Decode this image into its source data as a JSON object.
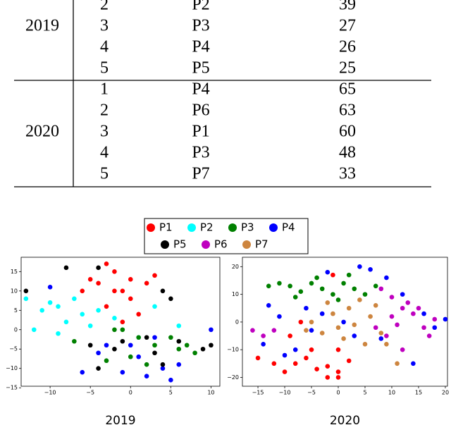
{
  "table": {
    "groups": [
      {
        "year": "2019",
        "rows": [
          [
            "2",
            "P2",
            "39"
          ],
          [
            "3",
            "P3",
            "27"
          ],
          [
            "4",
            "P4",
            "26"
          ],
          [
            "5",
            "P5",
            "25"
          ]
        ]
      },
      {
        "year": "2020",
        "rows": [
          [
            "1",
            "P4",
            "65"
          ],
          [
            "2",
            "P6",
            "63"
          ],
          [
            "3",
            "P1",
            "60"
          ],
          [
            "4",
            "P3",
            "48"
          ],
          [
            "5",
            "P7",
            "33"
          ]
        ]
      }
    ]
  },
  "legend": [
    {
      "name": "P1",
      "color": "#ff0000"
    },
    {
      "name": "P2",
      "color": "#00ffff"
    },
    {
      "name": "P3",
      "color": "#008000"
    },
    {
      "name": "P4",
      "color": "#0000ff"
    },
    {
      "name": "P5",
      "color": "#000000"
    },
    {
      "name": "P6",
      "color": "#bf00bf"
    },
    {
      "name": "P7",
      "color": "#cd853f"
    }
  ],
  "chart_data": [
    {
      "type": "scatter",
      "title": "2019",
      "xlim": [
        -13.6,
        11.1
      ],
      "ylim": [
        -14.6,
        18.7
      ],
      "xticks": [
        {
          "value": -10,
          "label": "−10"
        },
        {
          "value": -5,
          "label": "−5"
        },
        0,
        5,
        10
      ],
      "yticks": [
        {
          "value": -15,
          "label": "−15"
        },
        {
          "value": -10,
          "label": "−10"
        },
        {
          "value": -5,
          "label": "−5"
        },
        0,
        5,
        10,
        15
      ],
      "series": [
        {
          "x": [
            -3,
            -2,
            -4,
            -1,
            0,
            -3,
            1,
            -5,
            -2,
            3,
            -1,
            2,
            -6,
            0
          ],
          "values": [
            17,
            15,
            12,
            10,
            8,
            6,
            4,
            13,
            10,
            14,
            2,
            12,
            10,
            13
          ]
        },
        {
          "x": [
            -13,
            -11,
            -9,
            -12,
            -8,
            -6,
            -10,
            -7,
            -4,
            -2,
            1,
            6,
            3,
            -9,
            -5
          ],
          "values": [
            8,
            5,
            6,
            0,
            2,
            4,
            7,
            8,
            5,
            3,
            -2,
            1,
            6,
            -1,
            1
          ]
        },
        {
          "x": [
            -1,
            1,
            -7,
            3,
            6,
            8,
            0,
            5,
            -3,
            2,
            7,
            -2
          ],
          "values": [
            0,
            -2,
            -3,
            -4,
            -5,
            -6,
            -7,
            -2,
            -8,
            -9,
            -4,
            0
          ]
        },
        {
          "x": [
            -10,
            -6,
            -3,
            0,
            2,
            4,
            -1,
            1,
            3,
            6,
            10,
            5,
            -4
          ],
          "values": [
            11,
            -11,
            -4,
            -4,
            -12,
            -10,
            -11,
            -7,
            -2,
            -9,
            0,
            -13,
            -6
          ]
        },
        {
          "x": [
            -13,
            -8,
            -4,
            -5,
            -2,
            3,
            5,
            4,
            6,
            9,
            -1,
            2,
            4,
            -4,
            10
          ],
          "values": [
            10,
            16,
            16,
            -4,
            -5,
            -6,
            8,
            10,
            -3,
            -5,
            -3,
            -2,
            -9,
            -10,
            -4
          ]
        },
        {
          "x": [],
          "values": []
        },
        {
          "x": [],
          "values": []
        }
      ]
    },
    {
      "type": "scatter",
      "title": "2020",
      "xlim": [
        -17.9,
        20.4
      ],
      "ylim": [
        -23.2,
        23.4
      ],
      "xticks": [
        {
          "value": -15,
          "label": "−15"
        },
        {
          "value": -10,
          "label": "−10"
        },
        {
          "value": -5,
          "label": "−5"
        },
        0,
        5,
        10,
        15,
        20
      ],
      "yticks": [
        {
          "value": -20,
          "label": "−20"
        },
        {
          "value": -10,
          "label": "−10"
        },
        0,
        10,
        20
      ],
      "series": [
        {
          "x": [
            -15,
            -12,
            -10,
            -8,
            -6,
            -4,
            -2,
            0,
            2,
            -5,
            0,
            -9,
            -7,
            -2,
            -1,
            0
          ],
          "values": [
            -13,
            -15,
            -18,
            -15,
            -13,
            -17,
            -20,
            -18,
            -14,
            -10,
            -10,
            -5,
            0,
            -16,
            17,
            -20
          ]
        },
        {
          "x": [],
          "values": []
        },
        {
          "x": [
            -13,
            -11,
            -9,
            -7,
            -5,
            -3,
            -1,
            1,
            3,
            5,
            7,
            -4,
            0,
            -8,
            2
          ],
          "values": [
            13,
            14,
            13,
            11,
            14,
            12,
            10,
            14,
            12,
            10,
            13,
            16,
            8,
            9,
            17
          ]
        },
        {
          "x": [
            -14,
            -13,
            -10,
            -6,
            -3,
            1,
            4,
            6,
            9,
            12,
            16,
            18,
            -5,
            -8,
            3,
            -11,
            8,
            14,
            20,
            -2
          ],
          "values": [
            -8,
            6,
            -12,
            5,
            3,
            0,
            20,
            19,
            16,
            10,
            3,
            -2,
            -3,
            -10,
            -5,
            2,
            -6,
            -15,
            1,
            18
          ]
        },
        {
          "x": [],
          "values": []
        },
        {
          "x": [
            -16,
            -14,
            -12,
            8,
            10,
            12,
            14,
            16,
            18,
            11,
            9,
            13,
            15,
            17,
            10,
            7,
            12
          ],
          "values": [
            -3,
            -5,
            -3,
            12,
            9,
            5,
            3,
            -2,
            1,
            -1,
            -5,
            7,
            5,
            -5,
            2,
            -2,
            -10
          ]
        },
        {
          "x": [
            -5,
            -3,
            -1,
            0,
            2,
            4,
            6,
            8,
            -2,
            1,
            3,
            5,
            -6,
            9,
            11,
            7
          ],
          "values": [
            0,
            -4,
            3,
            -2,
            5,
            8,
            2,
            -4,
            7,
            -6,
            -1,
            -8,
            -3,
            -8,
            -15,
            6
          ]
        }
      ]
    }
  ]
}
